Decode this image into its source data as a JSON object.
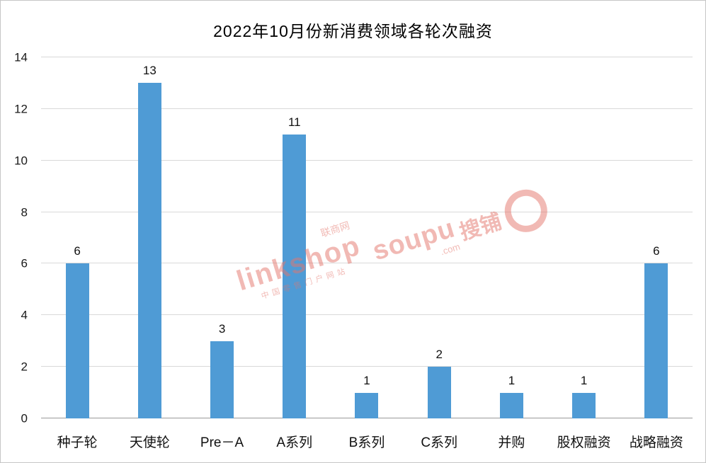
{
  "chart_data": {
    "type": "bar",
    "title": "2022年10月份新消费领域各轮次融资",
    "categories": [
      "种子轮",
      "天使轮",
      "Pre－A",
      "A系列",
      "B系列",
      "C系列",
      "并购",
      "股权融资",
      "战略融资"
    ],
    "values": [
      6,
      13,
      3,
      11,
      1,
      2,
      1,
      1,
      6
    ],
    "xlabel": "",
    "ylabel": "",
    "ylim": [
      0,
      14
    ],
    "yticks": [
      0,
      2,
      4,
      6,
      8,
      10,
      12,
      14
    ],
    "bar_color": "#4f9bd5",
    "grid": true,
    "legend": "none"
  },
  "watermarks": {
    "linkshop": {
      "site": "联商网",
      "brand": "linkshop",
      "tagline": "中国零售门户网站"
    },
    "soupu": {
      "brand": "soupu",
      "dotcom": ".com",
      "cn": "搜铺"
    }
  }
}
